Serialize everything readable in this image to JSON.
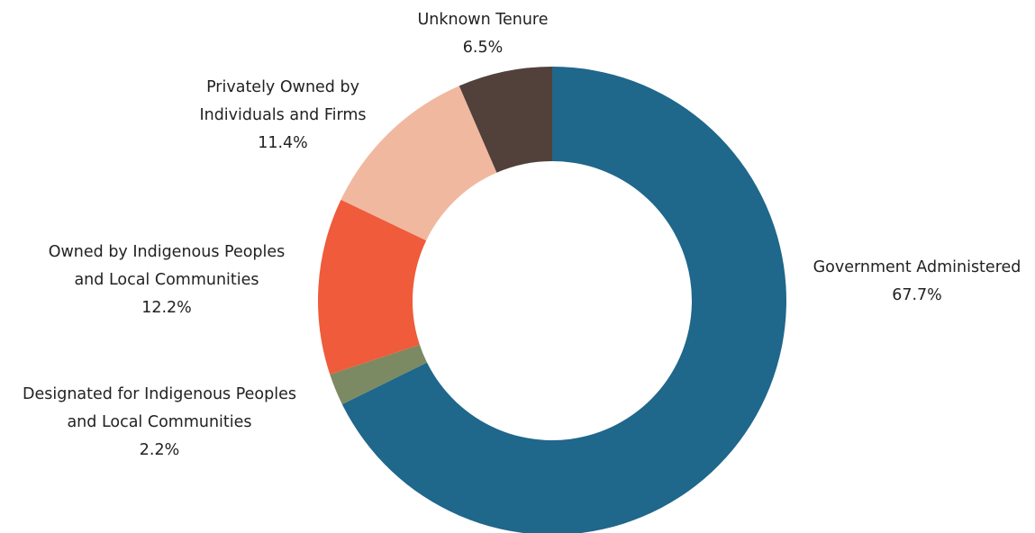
{
  "chart_data": {
    "type": "pie",
    "variant": "donut",
    "title": "",
    "slices": [
      {
        "label_lines": [
          "Government Administered"
        ],
        "value": 67.7,
        "value_label": "67.7%",
        "color": "#1f678b"
      },
      {
        "label_lines": [
          "Designated for Indigenous Peoples",
          "and Local Communities"
        ],
        "value": 2.2,
        "value_label": "2.2%",
        "color": "#7b8a62"
      },
      {
        "label_lines": [
          "Owned by Indigenous Peoples",
          "and Local Communities"
        ],
        "value": 12.2,
        "value_label": "12.2%",
        "color": "#ef5b3b"
      },
      {
        "label_lines": [
          "Privately Owned by",
          "Individuals and Firms"
        ],
        "value": 11.4,
        "value_label": "11.4%",
        "color": "#f1b8a0"
      },
      {
        "label_lines": [
          "Unknown Tenure"
        ],
        "value": 6.5,
        "value_label": "6.5%",
        "color": "#52403a"
      }
    ],
    "start_angle_deg": 0,
    "direction": "clockwise"
  }
}
